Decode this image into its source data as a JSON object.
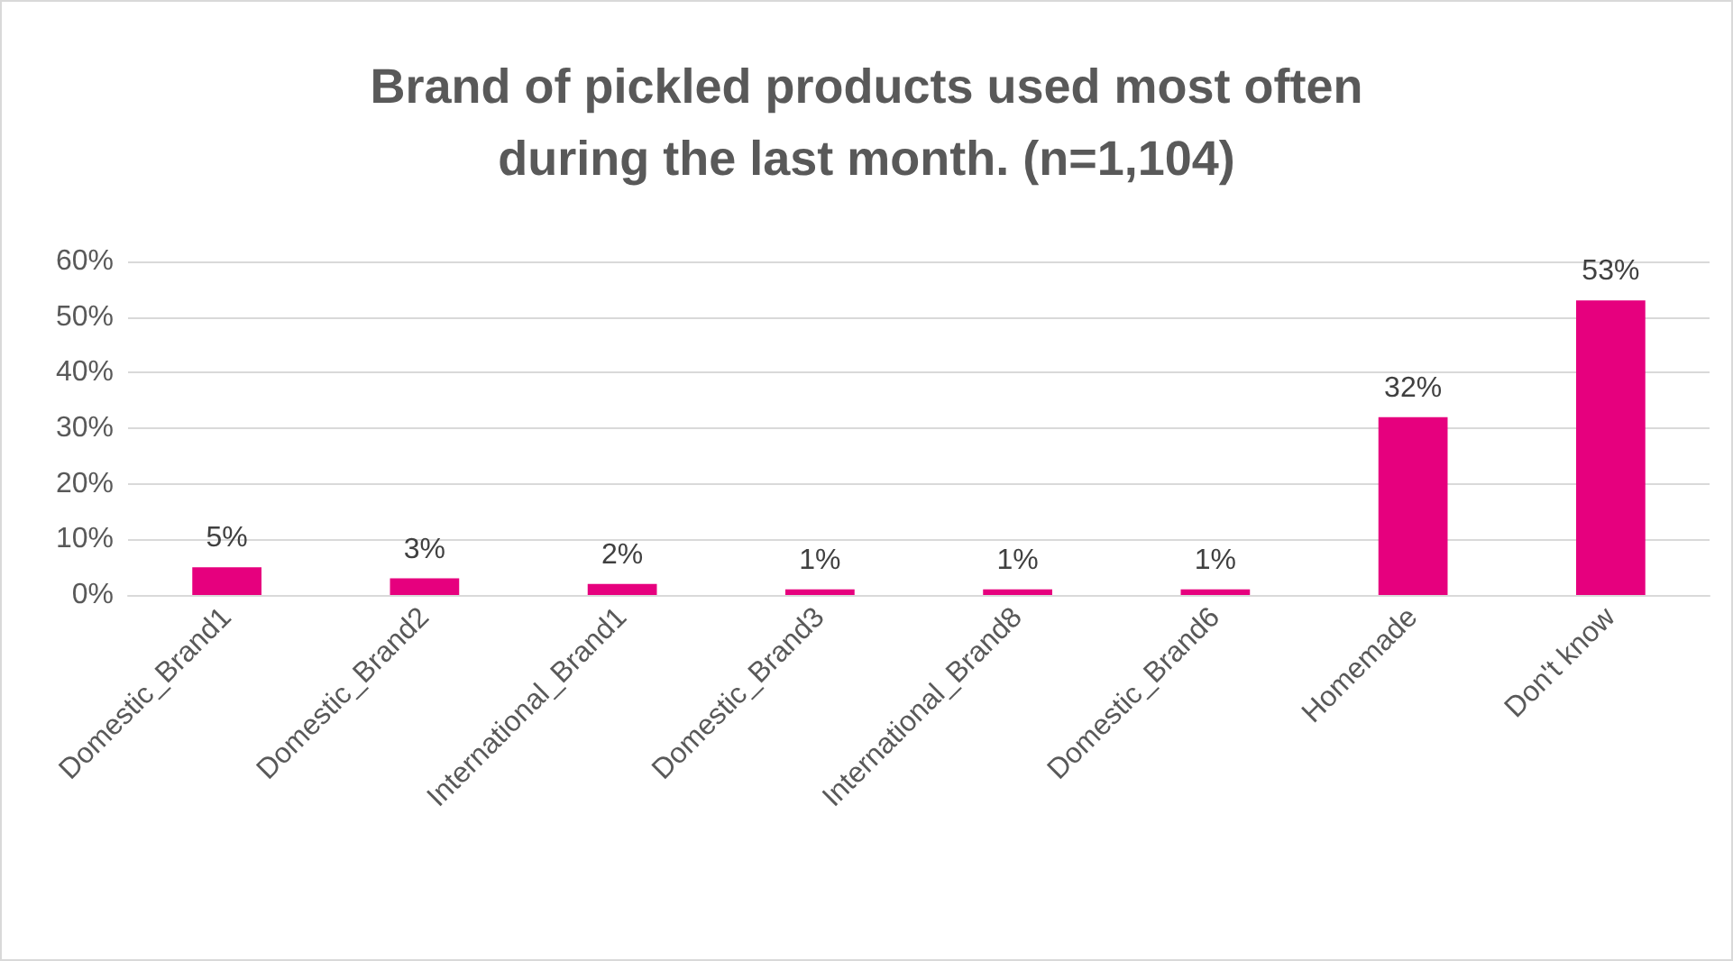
{
  "chart_data": {
    "type": "bar",
    "title": "Brand of pickled products used most often\nduring the last month. (n=1,104)",
    "categories": [
      "Domestic_Brand1",
      "Domestic_Brand2",
      "International_Brand1",
      "Domestic_Brand3",
      "International_Brand8",
      "Domestic_Brand6",
      "Homemade",
      "Don't know"
    ],
    "values": [
      5,
      3,
      2,
      1,
      1,
      1,
      32,
      53
    ],
    "value_labels": [
      "5%",
      "3%",
      "2%",
      "1%",
      "1%",
      "1%",
      "32%",
      "53%"
    ],
    "color": "#e6007e",
    "ylim": [
      0,
      60
    ],
    "yticks": [
      {
        "value": 0,
        "label": "0%"
      },
      {
        "value": 10,
        "label": "10%"
      },
      {
        "value": 20,
        "label": "20%"
      },
      {
        "value": 30,
        "label": "30%"
      },
      {
        "value": 40,
        "label": "40%"
      },
      {
        "value": 50,
        "label": "50%"
      },
      {
        "value": 60,
        "label": "60%"
      }
    ],
    "grid": "y"
  }
}
